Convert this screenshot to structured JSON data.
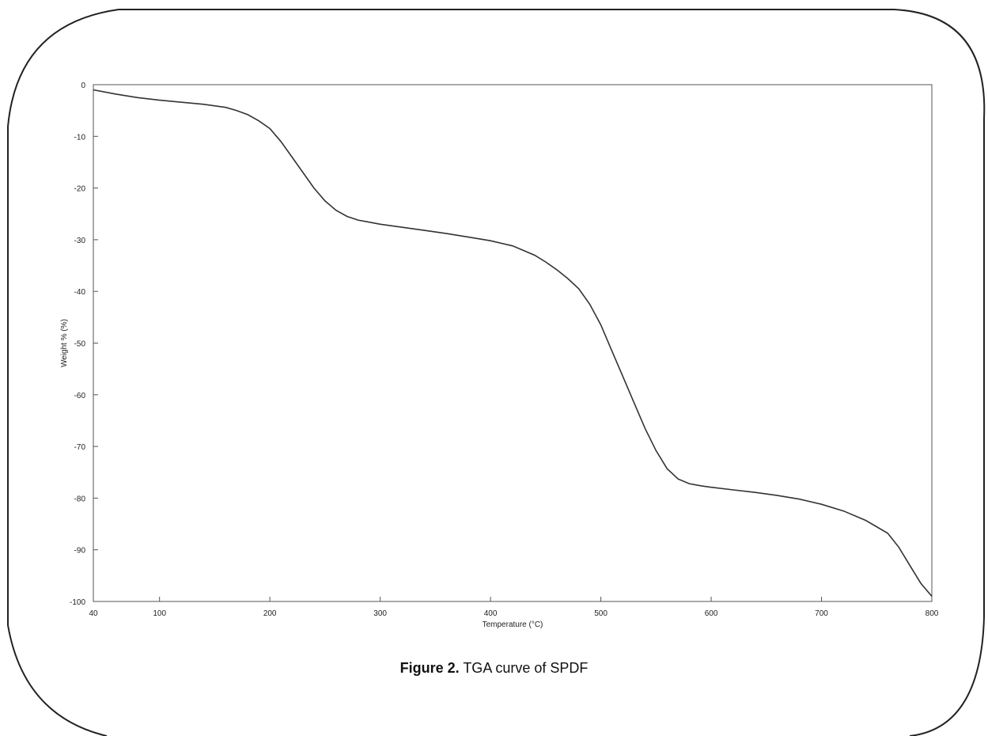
{
  "caption": {
    "label": "Figure 2.",
    "text": " TGA curve of SPDF"
  },
  "chart_data": {
    "type": "line",
    "title": "",
    "xlabel": "Temperature (°C)",
    "ylabel": "Weight % (%)",
    "xlim": [
      40,
      800
    ],
    "ylim": [
      -100,
      0
    ],
    "x_ticks": [
      40,
      100,
      200,
      300,
      400,
      500,
      600,
      700,
      800
    ],
    "y_ticks": [
      0,
      -10,
      -20,
      -30,
      -40,
      -50,
      -60,
      -70,
      -80,
      -90,
      -100
    ],
    "grid": false,
    "line_color": "#333333",
    "series": [
      {
        "x": [
          40,
          60,
          80,
          100,
          120,
          140,
          160,
          170,
          180,
          190,
          200,
          210,
          220,
          230,
          240,
          250,
          260,
          270,
          280,
          290,
          300,
          320,
          340,
          360,
          380,
          400,
          420,
          440,
          450,
          460,
          470,
          480,
          490,
          500,
          510,
          520,
          530,
          540,
          550,
          560,
          570,
          580,
          590,
          600,
          620,
          640,
          660,
          680,
          700,
          720,
          740,
          760,
          770,
          780,
          790,
          800
        ],
        "y": [
          -1,
          -1.8,
          -2.5,
          -3,
          -3.4,
          -3.8,
          -4.4,
          -5,
          -5.8,
          -7,
          -8.5,
          -11,
          -14,
          -17,
          -20,
          -22.5,
          -24.3,
          -25.5,
          -26.2,
          -26.6,
          -27,
          -27.6,
          -28.2,
          -28.8,
          -29.5,
          -30.2,
          -31.2,
          -33,
          -34.3,
          -35.8,
          -37.5,
          -39.5,
          -42.5,
          -46.5,
          -51.5,
          -56.5,
          -61.5,
          -66.5,
          -70.8,
          -74.3,
          -76.3,
          -77.2,
          -77.6,
          -77.9,
          -78.4,
          -78.9,
          -79.5,
          -80.2,
          -81.2,
          -82.5,
          -84.3,
          -86.8,
          -89.5,
          -93,
          -96.5,
          -99
        ]
      }
    ]
  }
}
